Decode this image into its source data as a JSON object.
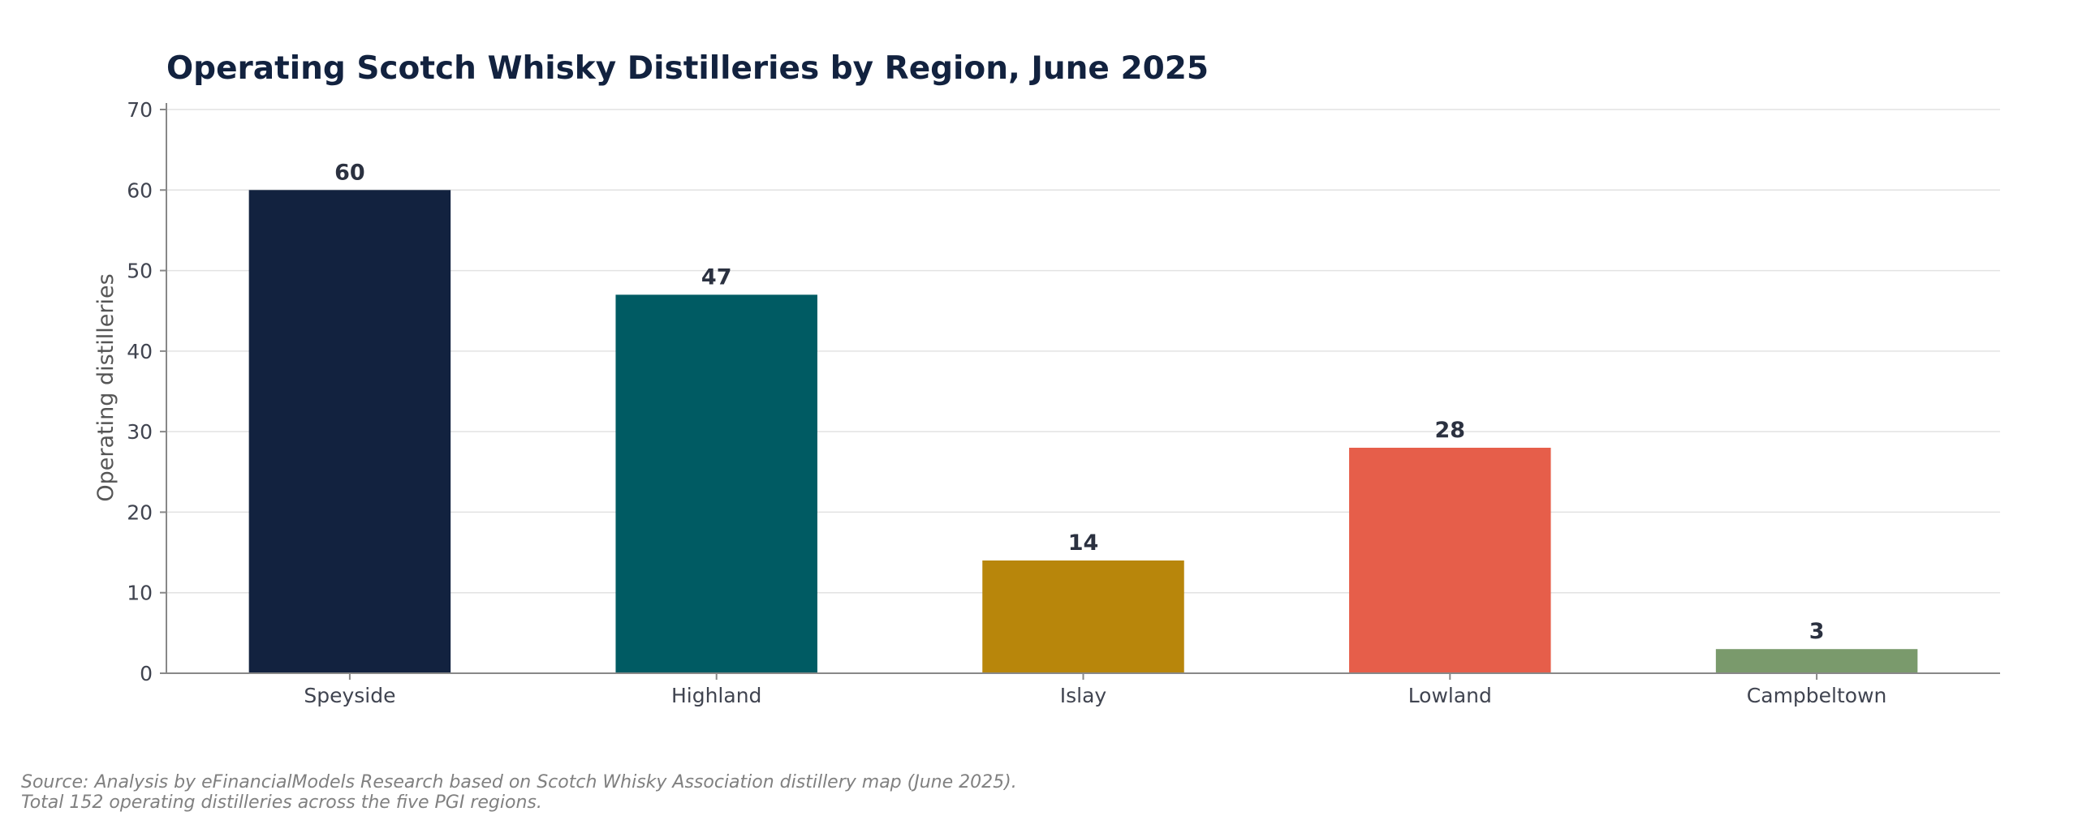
{
  "chart_data": {
    "type": "bar",
    "title": "Operating Scotch Whisky Distilleries by Region, June 2025",
    "xlabel": "",
    "ylabel": "Operating distilleries",
    "categories": [
      "Speyside",
      "Highland",
      "Islay",
      "Lowland",
      "Campbeltown"
    ],
    "values": [
      60,
      47,
      14,
      28,
      3
    ],
    "colors": [
      "#12223f",
      "#005b63",
      "#b8860b",
      "#e65e4a",
      "#7a9a6c"
    ],
    "data_labels": [
      "60",
      "47",
      "14",
      "28",
      "3"
    ],
    "ylim": [
      0,
      70
    ],
    "yticks": [
      0,
      10,
      20,
      30,
      40,
      50,
      60,
      70
    ],
    "grid": "horizontal",
    "legend": "none"
  },
  "footnotes": {
    "line1": "Source: Analysis by eFinancialModels Research based on Scotch Whisky Association distillery map (June 2025).",
    "line2": "Total 152 operating distilleries across the five PGI regions."
  }
}
